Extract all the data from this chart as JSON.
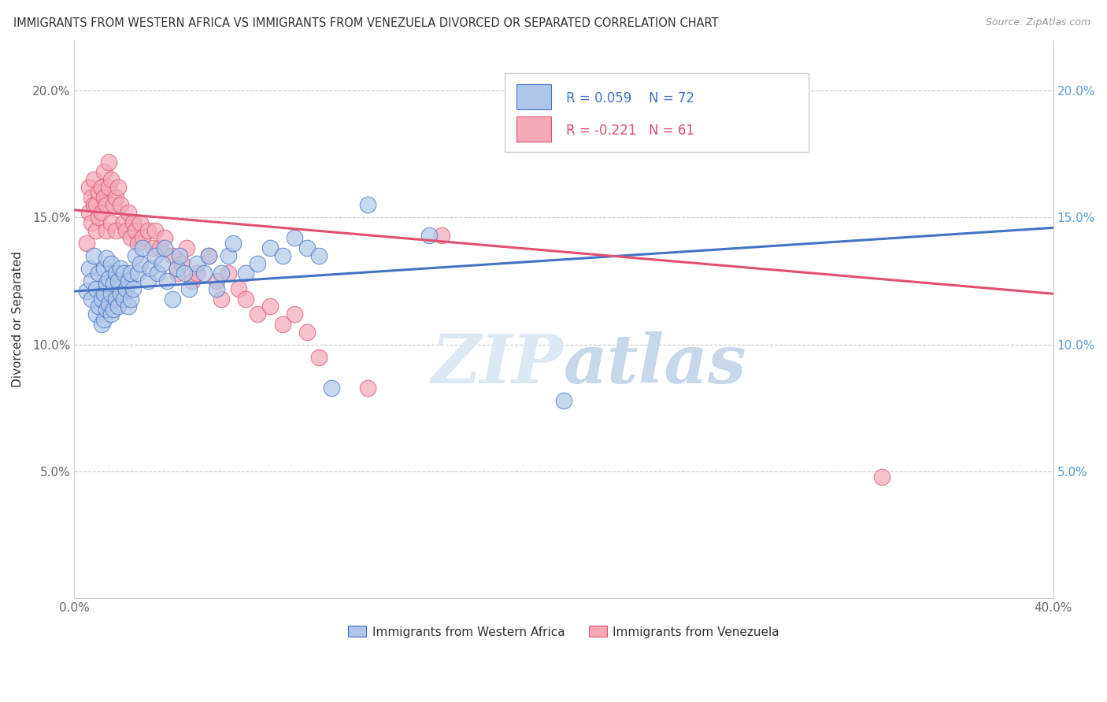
{
  "title": "IMMIGRANTS FROM WESTERN AFRICA VS IMMIGRANTS FROM VENEZUELA DIVORCED OR SEPARATED CORRELATION CHART",
  "source": "Source: ZipAtlas.com",
  "ylabel": "Divorced or Separated",
  "legend_label1": "Immigrants from Western Africa",
  "legend_label2": "Immigrants from Venezuela",
  "R1": 0.059,
  "N1": 72,
  "R2": -0.221,
  "N2": 61,
  "xlim": [
    0.0,
    0.4
  ],
  "ylim": [
    0.0,
    0.22
  ],
  "color_blue": "#aec6e8",
  "color_pink": "#f4a8b8",
  "line_color_blue": "#4472c4",
  "line_color_pink": "#e05070",
  "blue_trend_x": [
    0.0,
    0.4
  ],
  "blue_trend_y": [
    0.121,
    0.146
  ],
  "pink_trend_x": [
    0.0,
    0.4
  ],
  "pink_trend_y": [
    0.153,
    0.12
  ],
  "blue_scatter_x": [
    0.005,
    0.006,
    0.007,
    0.007,
    0.008,
    0.009,
    0.009,
    0.01,
    0.01,
    0.011,
    0.011,
    0.012,
    0.012,
    0.012,
    0.013,
    0.013,
    0.013,
    0.014,
    0.014,
    0.015,
    0.015,
    0.015,
    0.016,
    0.016,
    0.017,
    0.017,
    0.018,
    0.018,
    0.019,
    0.019,
    0.02,
    0.02,
    0.021,
    0.022,
    0.022,
    0.023,
    0.023,
    0.024,
    0.025,
    0.026,
    0.027,
    0.028,
    0.03,
    0.031,
    0.033,
    0.034,
    0.036,
    0.037,
    0.038,
    0.04,
    0.042,
    0.043,
    0.045,
    0.047,
    0.05,
    0.053,
    0.055,
    0.058,
    0.06,
    0.063,
    0.065,
    0.07,
    0.075,
    0.08,
    0.085,
    0.09,
    0.095,
    0.1,
    0.105,
    0.12,
    0.145,
    0.2
  ],
  "blue_scatter_y": [
    0.121,
    0.13,
    0.118,
    0.125,
    0.135,
    0.112,
    0.122,
    0.115,
    0.128,
    0.108,
    0.118,
    0.11,
    0.12,
    0.13,
    0.114,
    0.124,
    0.134,
    0.116,
    0.126,
    0.112,
    0.12,
    0.132,
    0.114,
    0.124,
    0.118,
    0.128,
    0.115,
    0.125,
    0.12,
    0.13,
    0.118,
    0.128,
    0.122,
    0.115,
    0.125,
    0.118,
    0.128,
    0.122,
    0.135,
    0.128,
    0.132,
    0.138,
    0.125,
    0.13,
    0.135,
    0.128,
    0.132,
    0.138,
    0.125,
    0.118,
    0.13,
    0.135,
    0.128,
    0.122,
    0.132,
    0.128,
    0.135,
    0.122,
    0.128,
    0.135,
    0.14,
    0.128,
    0.132,
    0.138,
    0.135,
    0.142,
    0.138,
    0.135,
    0.083,
    0.155,
    0.143,
    0.078
  ],
  "pink_scatter_x": [
    0.005,
    0.006,
    0.006,
    0.007,
    0.007,
    0.008,
    0.008,
    0.009,
    0.009,
    0.01,
    0.01,
    0.011,
    0.011,
    0.012,
    0.012,
    0.013,
    0.013,
    0.014,
    0.014,
    0.015,
    0.015,
    0.016,
    0.017,
    0.017,
    0.018,
    0.019,
    0.02,
    0.021,
    0.022,
    0.023,
    0.024,
    0.025,
    0.026,
    0.027,
    0.028,
    0.03,
    0.032,
    0.033,
    0.035,
    0.037,
    0.04,
    0.042,
    0.044,
    0.046,
    0.048,
    0.05,
    0.055,
    0.058,
    0.06,
    0.063,
    0.067,
    0.07,
    0.075,
    0.08,
    0.085,
    0.09,
    0.095,
    0.1,
    0.12,
    0.15,
    0.33
  ],
  "pink_scatter_y": [
    0.14,
    0.152,
    0.162,
    0.148,
    0.158,
    0.155,
    0.165,
    0.145,
    0.155,
    0.15,
    0.16,
    0.152,
    0.162,
    0.158,
    0.168,
    0.145,
    0.155,
    0.162,
    0.172,
    0.148,
    0.165,
    0.155,
    0.145,
    0.158,
    0.162,
    0.155,
    0.148,
    0.145,
    0.152,
    0.142,
    0.148,
    0.145,
    0.14,
    0.148,
    0.142,
    0.145,
    0.138,
    0.145,
    0.138,
    0.142,
    0.135,
    0.128,
    0.132,
    0.138,
    0.125,
    0.128,
    0.135,
    0.125,
    0.118,
    0.128,
    0.122,
    0.118,
    0.112,
    0.115,
    0.108,
    0.112,
    0.105,
    0.095,
    0.083,
    0.143,
    0.048
  ],
  "watermark_text": "ZIPatlas",
  "watermark_color": "#e0e8f0"
}
